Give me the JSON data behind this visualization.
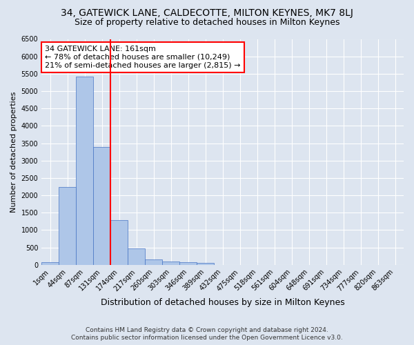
{
  "title": "34, GATEWICK LANE, CALDECOTTE, MILTON KEYNES, MK7 8LJ",
  "subtitle": "Size of property relative to detached houses in Milton Keynes",
  "xlabel": "Distribution of detached houses by size in Milton Keynes",
  "ylabel": "Number of detached properties",
  "footer_line1": "Contains HM Land Registry data © Crown copyright and database right 2024.",
  "footer_line2": "Contains public sector information licensed under the Open Government Licence v3.0.",
  "categories": [
    "1sqm",
    "44sqm",
    "87sqm",
    "131sqm",
    "174sqm",
    "217sqm",
    "260sqm",
    "303sqm",
    "346sqm",
    "389sqm",
    "432sqm",
    "475sqm",
    "518sqm",
    "561sqm",
    "604sqm",
    "648sqm",
    "691sqm",
    "734sqm",
    "777sqm",
    "820sqm",
    "863sqm"
  ],
  "values": [
    75,
    2250,
    5420,
    3390,
    1290,
    480,
    160,
    90,
    70,
    50,
    0,
    0,
    0,
    0,
    0,
    0,
    0,
    0,
    0,
    0,
    0
  ],
  "bar_color": "#aec6e8",
  "bar_edge_color": "#4472c4",
  "vline_color": "red",
  "vline_x_index": 4,
  "annotation_text_line1": "34 GATEWICK LANE: 161sqm",
  "annotation_text_line2": "← 78% of detached houses are smaller (10,249)",
  "annotation_text_line3": "21% of semi-detached houses are larger (2,815) →",
  "annotation_box_color": "white",
  "annotation_box_edge_color": "red",
  "ylim": [
    0,
    6500
  ],
  "yticks": [
    0,
    500,
    1000,
    1500,
    2000,
    2500,
    3000,
    3500,
    4000,
    4500,
    5000,
    5500,
    6000,
    6500
  ],
  "background_color": "#dde5f0",
  "plot_background_color": "#dde5f0",
  "grid_color": "white",
  "title_fontsize": 10,
  "subtitle_fontsize": 9,
  "xlabel_fontsize": 9,
  "ylabel_fontsize": 8,
  "tick_fontsize": 7,
  "annotation_fontsize": 8,
  "footer_fontsize": 6.5
}
